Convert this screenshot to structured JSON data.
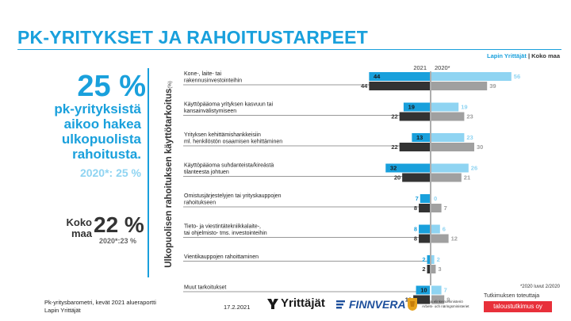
{
  "title": "PK-YRITYKSET JA RAHOITUSTARPEET",
  "region_label": {
    "lapin": "Lapin Yrittäjät",
    "separator": " | ",
    "koko": "Koko maa"
  },
  "highlight": {
    "pct": "25 %",
    "text": [
      "pk-yrityksistä",
      "aikoo hakea",
      "ulkopuolista",
      "rahoitusta."
    ],
    "prev": "2020*: 25 %"
  },
  "koko_maa": {
    "label": [
      "Koko",
      "maa"
    ],
    "pct": "22 %",
    "prev": "2020*:23 %"
  },
  "vertical_label": {
    "main": "Ulkopuolisen rahoituksen käyttötarkoitus",
    "sub": "(%)"
  },
  "footnote": "*2020 luvut 2/2020",
  "footer": {
    "source_line1": "Pk-yritysbarometri, kevät 2021 alueraportti",
    "source_line2": "Lapin Yrittäjät",
    "date": "17.2.2021",
    "logo_yrittajat": "Yrittäjät",
    "logo_finnvera": "FINNVERA",
    "logo_tem_line1": "Työ- ja elinkeinoministeriö",
    "logo_tem_line2": "Arbets- och näringsministeriet",
    "tutkimus": "Tutkimuksen toteuttaja",
    "taloustutkimus": "taloustutkimus oy"
  },
  "colors": {
    "accent": "#19a0dc",
    "lapin_2021": "#19a0dc",
    "koko_2021": "#333333",
    "lapin_2020": "#8fd4f2",
    "koko_2020": "#a0a0a0"
  },
  "chart_data": {
    "type": "bar",
    "orientation": "horizontal",
    "year_labels": [
      "2021",
      "2020*"
    ],
    "categories": [
      [
        "Kone-, laite- tai",
        "rakennusinvestointeihin"
      ],
      [
        "Käyttöpääoma yrityksen kasvuun tai",
        "kansainvälistymiseen"
      ],
      [
        "Yrityksen kehittämishankkeisiin",
        "ml. henkilöstön osaamisen kehittäminen"
      ],
      [
        "Käyttöpääoma suhdanteista/kireästä",
        "tilanteesta johtuen"
      ],
      [
        "Omistusjärjestelyjen tai yrityskauppojen",
        "rahoitukseen"
      ],
      [
        "Tieto- ja viestintätekniikkalaite-,",
        "tai ohjelmisto- tms. investointeihin"
      ],
      [
        "Vientikauppojen rahoittaminen"
      ],
      [
        "Muut tarkoitukset"
      ]
    ],
    "series": [
      {
        "name": "Lapin Yrittäjät",
        "period": "2021",
        "values": [
          44,
          19,
          13,
          32,
          7,
          8,
          2,
          10
        ]
      },
      {
        "name": "Koko maa",
        "period": "2021",
        "values": [
          44,
          22,
          22,
          20,
          8,
          8,
          2,
          12
        ]
      },
      {
        "name": "Lapin Yrittäjät",
        "period": "2020*",
        "values": [
          56,
          19,
          23,
          26,
          0,
          6,
          2,
          7
        ]
      },
      {
        "name": "Koko maa",
        "period": "2020*",
        "values": [
          39,
          23,
          30,
          21,
          7,
          12,
          3,
          9
        ]
      }
    ],
    "xlim": [
      0,
      60
    ],
    "grid": false,
    "legend": "top-right"
  }
}
